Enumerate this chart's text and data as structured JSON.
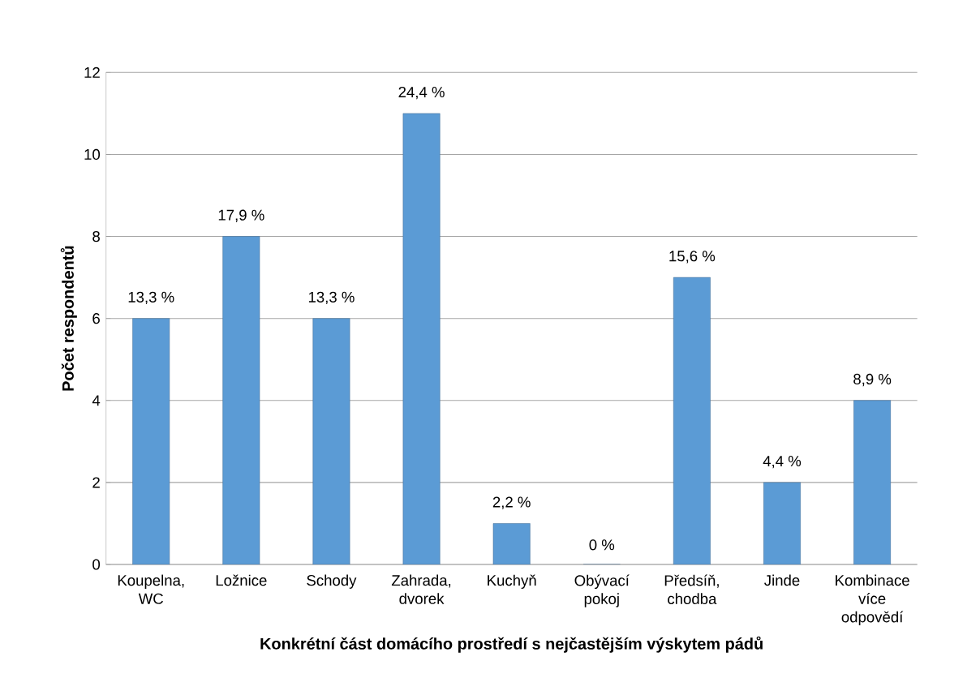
{
  "chart_data": {
    "type": "bar",
    "xlabel": "Konkrétní část domácího prostředí s nejčastějším výskytem pádů",
    "ylabel": "Počet respondentů",
    "categories": [
      "Koupelna, WC",
      "Ložnice",
      "Schody",
      "Zahrada, dvorek",
      "Kuchyň",
      "Obývací pokoj",
      "Předsíň, chodba",
      "Jinde",
      "Kombinace více odpovědí"
    ],
    "values": [
      6,
      8,
      6,
      11,
      1,
      0,
      7,
      2,
      4
    ],
    "annotations": [
      {
        "text": "13,3 %",
        "x": "Koupelna, WC",
        "y": 6
      },
      {
        "text": "17,9 %",
        "x": "Ložnice",
        "y": 8
      },
      {
        "text": "13,3 %",
        "x": "Schody",
        "y": 6
      },
      {
        "text": "24,4 %",
        "x": "Zahrada, dvorek",
        "y": 11
      },
      {
        "text": "2,2 %",
        "x": "Kuchyň",
        "y": 1
      },
      {
        "text": "0 %",
        "x": "Obývací pokoj",
        "y": 0
      },
      {
        "text": "15,6 %",
        "x": "Předsíň, chodba",
        "y": 7
      },
      {
        "text": "4,4 %",
        "x": "Jinde",
        "y": 2
      },
      {
        "text": "8,9 %",
        "x": "Kombinace více odpovědí",
        "y": 4
      }
    ],
    "color": "#5b9bd5",
    "ylim": [
      0,
      12
    ],
    "yticks": [
      0,
      2,
      4,
      6,
      8,
      10,
      12
    ],
    "grid": "y"
  }
}
